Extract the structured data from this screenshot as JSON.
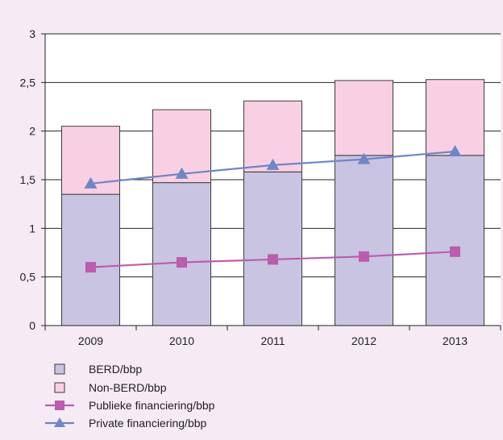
{
  "chart_data": {
    "type": "bar",
    "categories": [
      "2009",
      "2010",
      "2011",
      "2012",
      "2013"
    ],
    "ylim": [
      0,
      3
    ],
    "yticks": [
      0,
      0.5,
      1,
      1.5,
      2,
      2.5,
      3
    ],
    "ytick_labels": [
      "0",
      "0,5",
      "1",
      "1,5",
      "2",
      "2,5",
      "3"
    ],
    "grid": true,
    "stacked": true,
    "legend_position": "bottom-left",
    "series": [
      {
        "name": "BERD/bbp",
        "kind": "bar",
        "values": [
          1.35,
          1.47,
          1.58,
          1.75,
          1.75
        ],
        "color": "#c8c4e2",
        "stroke": "#3c3c3c"
      },
      {
        "name": "Non-BERD/bbp",
        "kind": "bar",
        "values": [
          0.7,
          0.75,
          0.73,
          0.77,
          0.78
        ],
        "color": "#f9cfe4",
        "stroke": "#3c3c3c"
      },
      {
        "name": "Publieke financiering/bbp",
        "kind": "line",
        "marker": "square",
        "values": [
          0.6,
          0.65,
          0.68,
          0.71,
          0.76
        ],
        "color": "#bb5cac"
      },
      {
        "name": "Private financiering/bbp",
        "kind": "line",
        "marker": "triangle",
        "values": [
          1.46,
          1.56,
          1.65,
          1.71,
          1.79
        ],
        "color": "#6f86c6"
      }
    ]
  }
}
